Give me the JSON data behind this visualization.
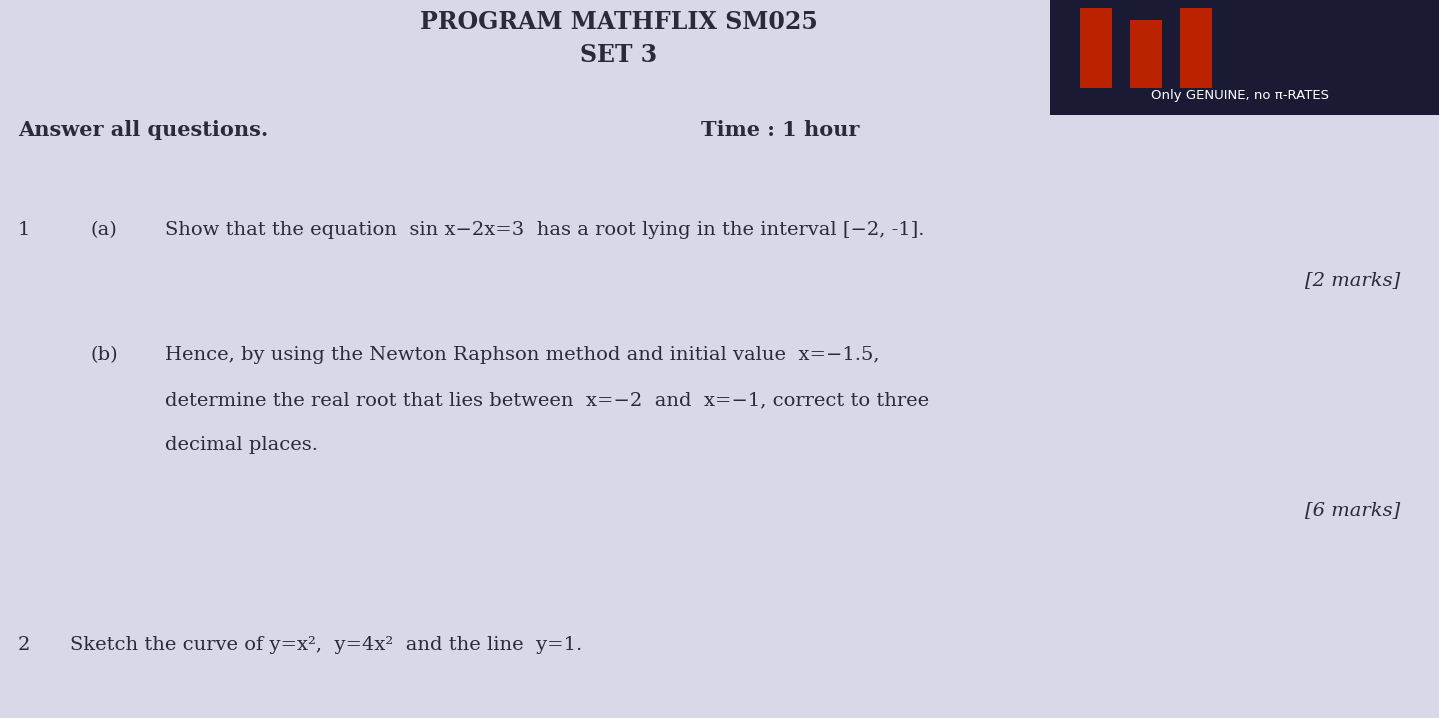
{
  "bg_color": "#d8d8e8",
  "title_line1": "PROGRAM MATHFLIX SM025",
  "title_line2": "SET 3",
  "logo_box_color": "#1a1a35",
  "logo_text": "Only GENUINE, no π-RATES",
  "answer_all": "Answer all questions.",
  "time_text": "Time : 1 hour",
  "q1_num": "1",
  "q1a_label": "(a)",
  "q1a_text": "Show that the equation  sin x−2x=3  has a root lying in the interval [−2, -1].",
  "q1a_marks": "[2 marks]",
  "q1b_label": "(b)",
  "q1b_line1": "Hence, by using the Newton Raphson method and initial value  x=−1.5,",
  "q1b_line2": "determine the real root that lies between  x=−2  and  x=−1, correct to three",
  "q1b_line3": "decimal places.",
  "q1b_marks": "[6 marks]",
  "q2_num": "2",
  "q2_text": "Sketch the curve of y=x²,  y=4x²  and the line  y=1.",
  "font_color": "#2a2a3a",
  "bar_color": "#bb2200",
  "title_fontsize": 17,
  "body_fontsize": 14,
  "marks_fontsize": 14
}
